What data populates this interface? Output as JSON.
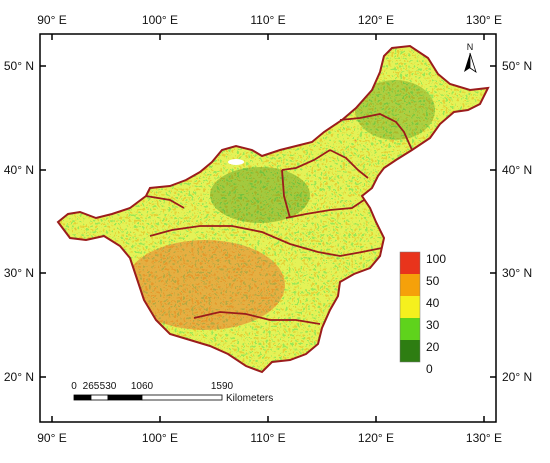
{
  "axes": {
    "lon_ticks": [
      "90° E",
      "100° E",
      "110° E",
      "120° E",
      "130° E"
    ],
    "lat_ticks": [
      "50° N",
      "40° N",
      "30° N",
      "20° N"
    ]
  },
  "north_arrow": {
    "label": "N",
    "icon": "north-arrow-icon"
  },
  "legend": {
    "items": [
      {
        "label": "100",
        "color": "#e8341c"
      },
      {
        "label": "50",
        "color": "#f5a10a"
      },
      {
        "label": "40",
        "color": "#f5f01e"
      },
      {
        "label": "30",
        "color": "#5fd31c"
      },
      {
        "label": "20",
        "color": "#2e7d12"
      },
      {
        "label": "0",
        "color": ""
      }
    ]
  },
  "scale_bar": {
    "ticks": [
      "0",
      "265",
      "530",
      "1060",
      "1590"
    ],
    "unit": "Kilometers"
  },
  "colors": {
    "boundary": "#9b1c1c",
    "frame": "#000000"
  }
}
